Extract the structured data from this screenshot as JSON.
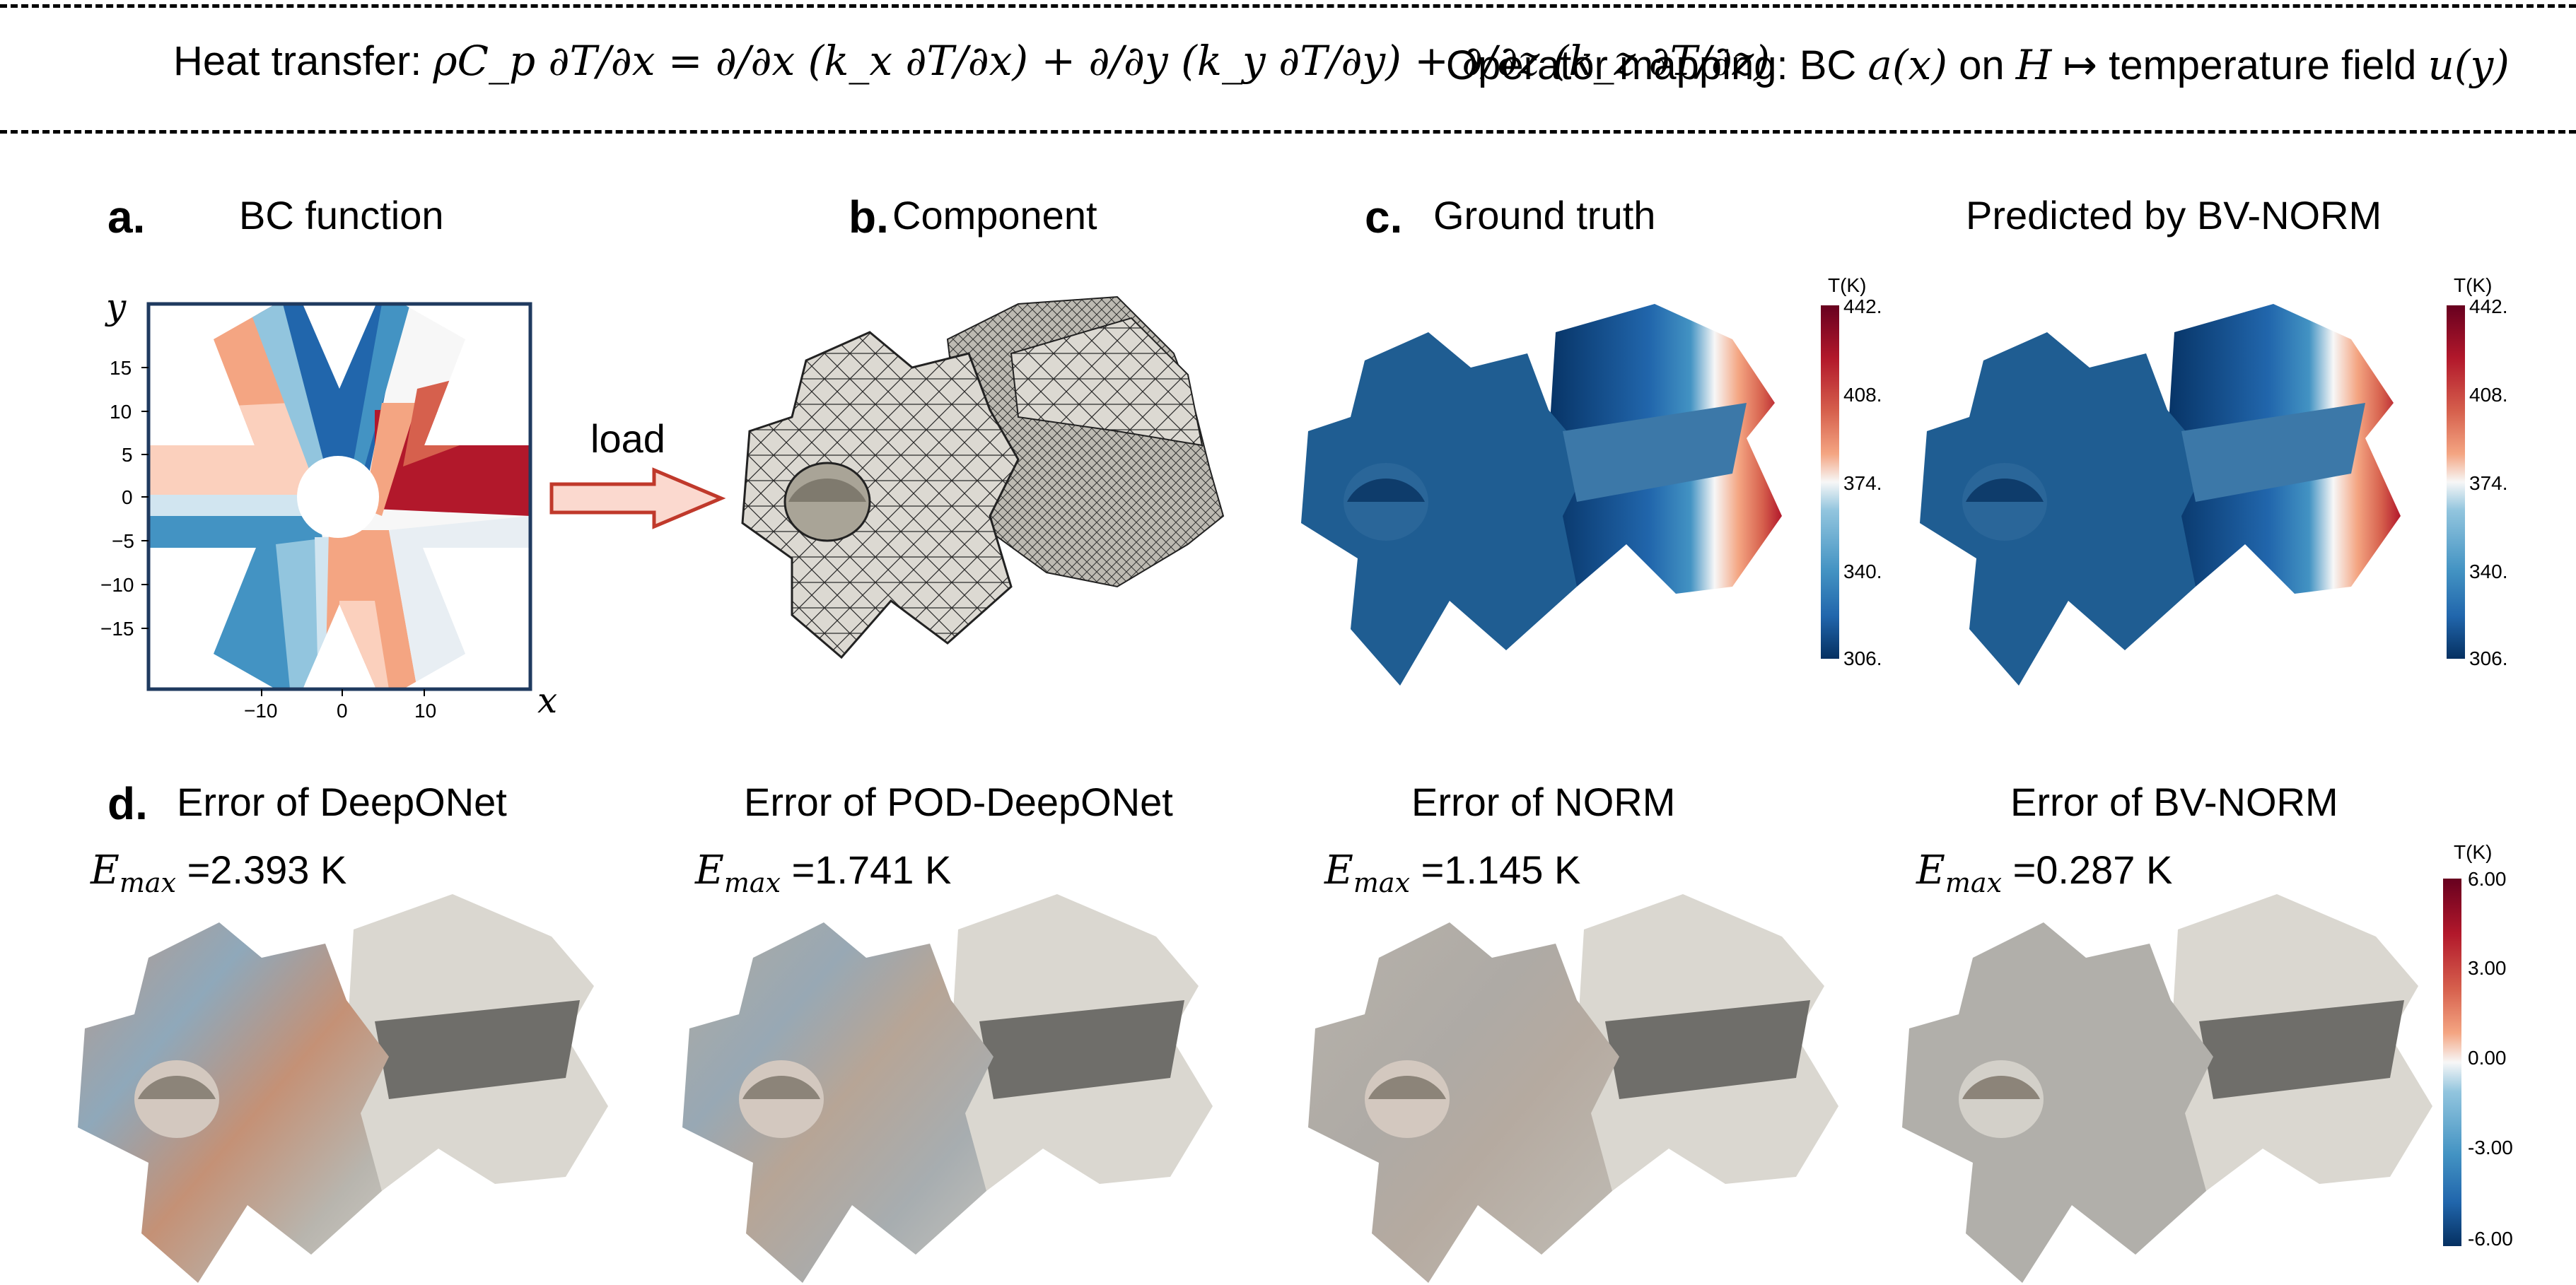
{
  "header": {
    "equation_prefix": "Heat transfer: ",
    "equation": "ρC_p ∂T/∂x = ∂/∂x (k_x ∂T/∂x) + ∂/∂y (k_y ∂T/∂y) + ∂/∂z (k_z ∂T/∂z)",
    "mapping_prefix": "Operator mapping: BC ",
    "mapping_a": "a(x)",
    "mapping_on": " on ",
    "mapping_H": "H",
    "mapping_arrow": " ↦ temperature field ",
    "mapping_u": "u(y)"
  },
  "panels": {
    "a": {
      "letter": "a.",
      "title": "BC function",
      "xvar": "x",
      "yvar": "y",
      "xticks": [
        "−10",
        "0",
        "10"
      ],
      "yticks": [
        "15",
        "10",
        "5",
        "0",
        "−5",
        "−10",
        "−15"
      ]
    },
    "load_label": "load",
    "b": {
      "letter": "b.",
      "title": "Component"
    },
    "c": {
      "letter": "c.",
      "title_gt": "Ground truth",
      "title_pred": "Predicted by BV-NORM"
    },
    "d": {
      "letter": "d.",
      "errors": [
        {
          "title": "Error of DeepONet",
          "value": "=2.393 K"
        },
        {
          "title": "Error of POD-DeepONet",
          "value": "=1.741 K"
        },
        {
          "title": "Error of NORM",
          "value": "=1.145 K"
        },
        {
          "title": "Error of BV-NORM",
          "value": "=0.287 K"
        }
      ],
      "emax_symbol": "E",
      "emax_sub": "max"
    }
  },
  "colorbar_temp": {
    "unit": "T(K)",
    "ticks": [
      "442.",
      "408.",
      "374.",
      "340.",
      "306."
    ],
    "top_color": "#67001f",
    "mid_color": "#f7f7f7",
    "bottom_color": "#053061"
  },
  "colorbar_err": {
    "unit": "T(K)",
    "ticks": [
      "6.00",
      "3.00",
      "0.00",
      "-3.00",
      "-6.00"
    ]
  },
  "colors": {
    "hot": "#b2182b",
    "cold": "#2166ac",
    "light_red": "#f4a582",
    "light_blue": "#92c5de",
    "mesh_fill": "#d9d6cf",
    "gear_gray": "#c8c6c0",
    "arrow_fill": "#fbd9cf",
    "arrow_stroke": "#c0392b"
  }
}
